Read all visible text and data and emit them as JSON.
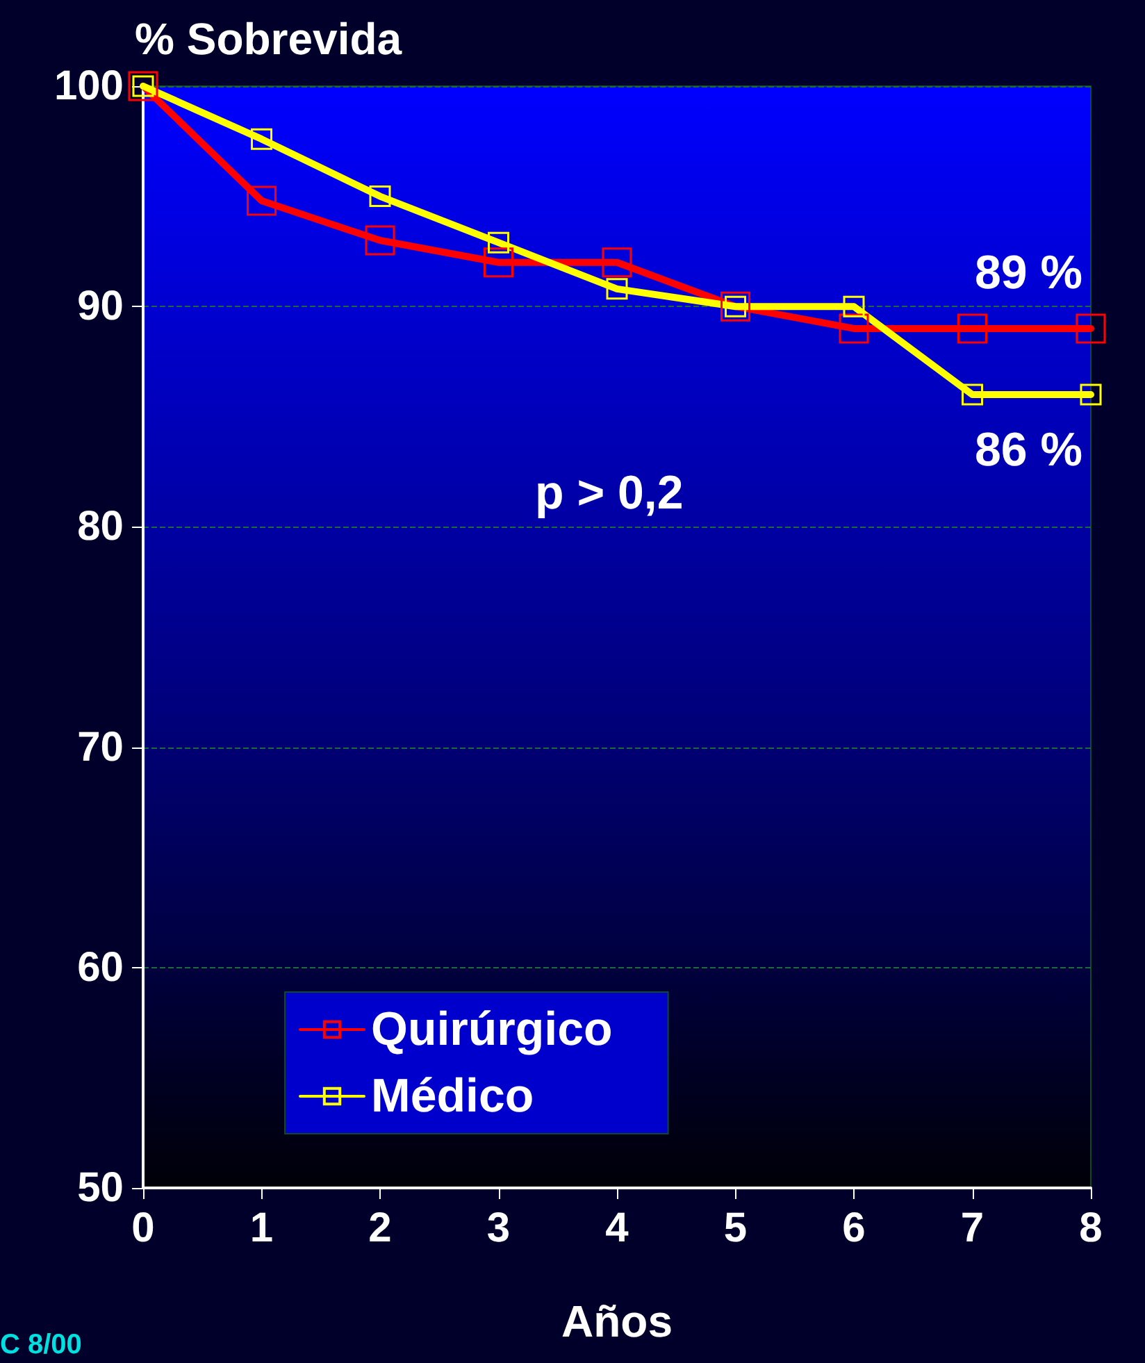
{
  "chart_data": {
    "type": "line",
    "ylabel": "% Sobrevida",
    "xlabel": "Años",
    "x": [
      0,
      1,
      2,
      3,
      4,
      5,
      6,
      7,
      8
    ],
    "series": [
      {
        "name": "Quirúrgico",
        "color": "#ff0000",
        "values": [
          100,
          94.8,
          93,
          92,
          92,
          90,
          89,
          89,
          89
        ]
      },
      {
        "name": "Médico",
        "color": "#ffff00",
        "values": [
          100,
          97.6,
          95,
          92.9,
          90.8,
          90,
          90,
          86,
          86
        ]
      }
    ],
    "xlim": [
      0,
      8
    ],
    "xticks": [
      0,
      1,
      2,
      3,
      4,
      5,
      6,
      7,
      8
    ],
    "ylim": [
      50,
      100
    ],
    "yticks": [
      50,
      60,
      70,
      80,
      90,
      100
    ],
    "grid": "y",
    "legend": "bottom left",
    "marker": "square",
    "line_style": "solid",
    "annotations": [
      {
        "text": "89 %",
        "x": 8,
        "y": 89
      },
      {
        "text": "86 %",
        "x": 8,
        "y": 86
      },
      "p > 0,2",
      "C 8/00"
    ]
  }
}
